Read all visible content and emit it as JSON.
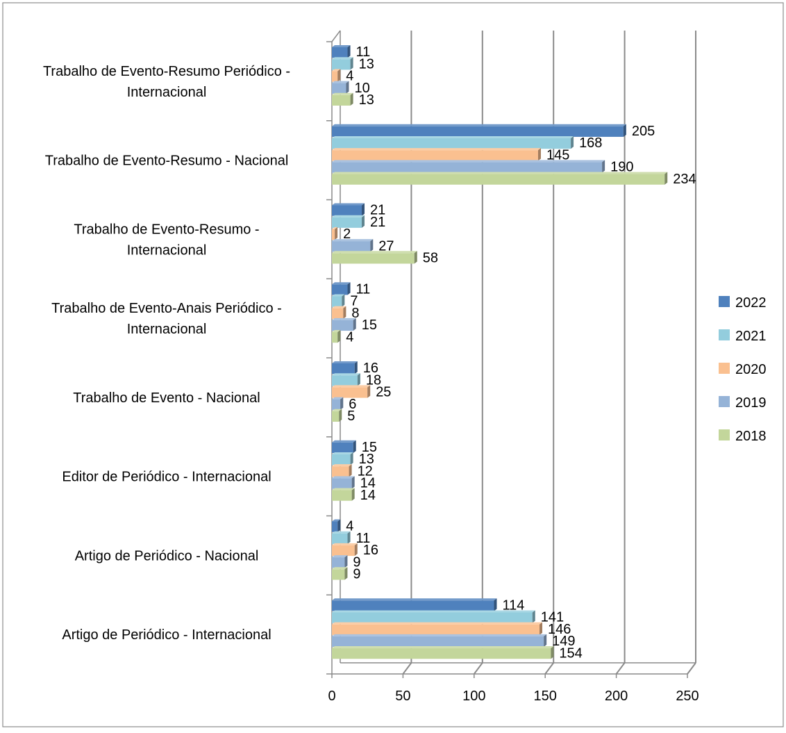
{
  "chart_data": {
    "type": "bar",
    "orientation": "horizontal",
    "three_d": true,
    "categories": [
      "Trabalho de Evento-Resumo Periódico - Internacional",
      "Trabalho de Evento-Resumo - Nacional",
      "Trabalho de Evento-Resumo - Internacional",
      "Trabalho de Evento-Anais Periódico - Internacional",
      "Trabalho de Evento - Nacional",
      "Editor de Periódico - Internacional",
      "Artigo de Periódico - Nacional",
      "Artigo de Periódico - Internacional"
    ],
    "category_lines": [
      [
        "Trabalho de Evento-Resumo Periódico -",
        "Internacional"
      ],
      [
        "Trabalho de Evento-Resumo - Nacional"
      ],
      [
        "Trabalho de Evento-Resumo -",
        "Internacional"
      ],
      [
        "Trabalho de Evento-Anais Periódico -",
        "Internacional"
      ],
      [
        "Trabalho de Evento - Nacional"
      ],
      [
        "Editor de Periódico - Internacional"
      ],
      [
        "Artigo de Periódico - Nacional"
      ],
      [
        "Artigo de Periódico - Internacional"
      ]
    ],
    "series": [
      {
        "name": "2022",
        "color": "#4f81bd",
        "values": [
          11,
          205,
          21,
          11,
          16,
          15,
          4,
          114
        ]
      },
      {
        "name": "2021",
        "color": "#93cddd",
        "values": [
          13,
          168,
          21,
          7,
          18,
          13,
          11,
          141
        ]
      },
      {
        "name": "2020",
        "color": "#fac090",
        "values": [
          4,
          145,
          2,
          8,
          25,
          12,
          16,
          146
        ]
      },
      {
        "name": "2019",
        "color": "#95b3d7",
        "values": [
          10,
          190,
          27,
          15,
          6,
          14,
          9,
          149
        ]
      },
      {
        "name": "2018",
        "color": "#c3d69b",
        "values": [
          13,
          234,
          58,
          4,
          5,
          14,
          9,
          154
        ]
      }
    ],
    "xlim": [
      0,
      250
    ],
    "xticks": [
      "0",
      "50",
      "100",
      "150",
      "200",
      "250"
    ],
    "grid": true,
    "legend_position": "right"
  }
}
